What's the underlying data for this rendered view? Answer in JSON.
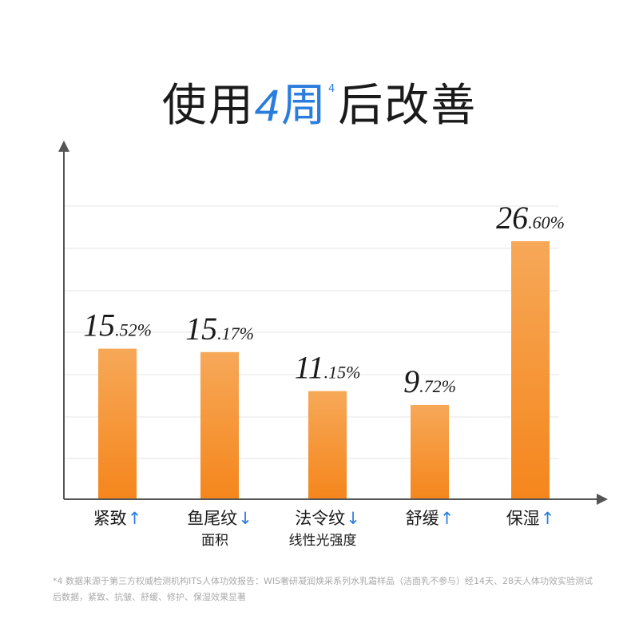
{
  "title": {
    "prefix": "使用",
    "number": "4",
    "accent_cn": "周",
    "superscript": "4",
    "suffix": "后改善"
  },
  "chart_data": {
    "type": "bar",
    "categories": [
      "紧致",
      "鱼尾纹",
      "法令纹",
      "舒缓",
      "保湿"
    ],
    "category_sublabels": [
      "",
      "面积",
      "线性光强度",
      "",
      ""
    ],
    "category_arrows": [
      "↑",
      "↓",
      "↓",
      "↑",
      "↑"
    ],
    "values": [
      15.52,
      15.17,
      11.15,
      9.72,
      26.6
    ],
    "value_labels": [
      {
        "int": "15",
        "dec": ".52%"
      },
      {
        "int": "15",
        "dec": ".17%"
      },
      {
        "int": "11",
        "dec": ".15%"
      },
      {
        "int": "9",
        "dec": ".72%"
      },
      {
        "int": "26",
        "dec": ".60%"
      }
    ],
    "ylim": [
      0,
      35
    ],
    "grid": true,
    "bar_color_top": "#f6a858",
    "bar_color_bottom": "#f5861c",
    "axis_color": "#555555",
    "grid_color": "#e6e6e6"
  },
  "footnote": "*4 数据来源于第三方权威检测机构ITS人体功效报告：WIS奢研凝润焕采系列水乳霜样品（洁面乳不参与）经14天、28天人体功效实验测试后数据，紧致、抗皱、舒缓、修护、保湿效果显著"
}
